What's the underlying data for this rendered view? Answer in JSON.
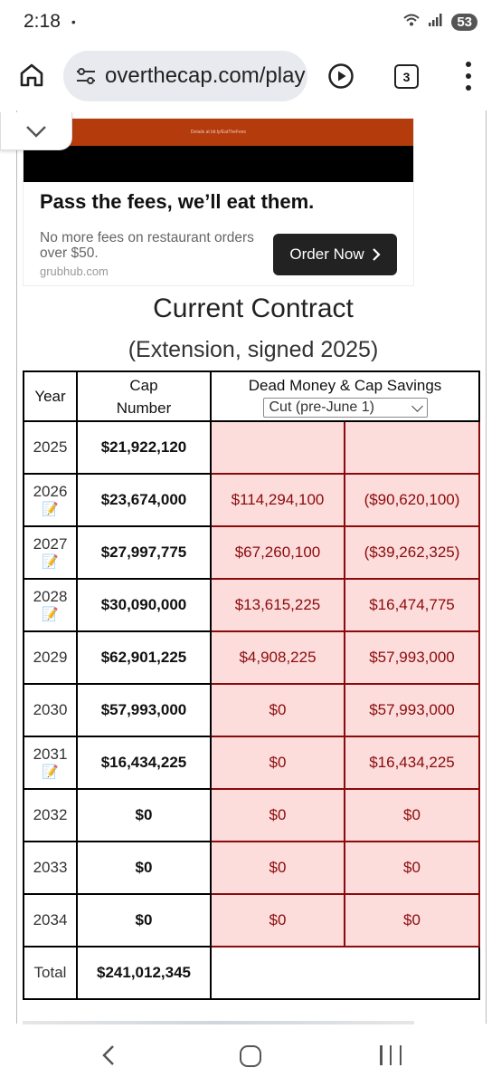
{
  "status_bar": {
    "time": "2:18",
    "dot": "•",
    "battery": "53",
    "icons": [
      "wifi-icon",
      "signal-icon"
    ]
  },
  "browser": {
    "url": "overthecap.com/play",
    "tab_count": "3",
    "icons": [
      "home-icon",
      "tune-icon",
      "play-icon",
      "tabs-icon",
      "menu-icon"
    ]
  },
  "ad": {
    "headline": "Pass the fees, we’ll eat them.",
    "body": "No more fees on restaurant orders over $50.",
    "domain": "grubhub.com",
    "button_label": "Order Now",
    "banner_caption": "Details at bit.ly/EatTheFees",
    "colors": {
      "banner": "#b43b0c",
      "button": "#222222"
    }
  },
  "contract": {
    "title": "Current Contract",
    "subtitle": "(Extension, signed 2025)",
    "headers": {
      "year": "Year",
      "cap_number": "Cap Number",
      "dead_money": "Dead Money & Cap Savings",
      "select_value": "Cut (pre-June 1)"
    },
    "rows": [
      {
        "year": "2025",
        "memo": false,
        "cap": "$21,922,120",
        "dead": "",
        "savings": ""
      },
      {
        "year": "2026",
        "memo": true,
        "cap": "$23,674,000",
        "dead": "$114,294,100",
        "savings": "($90,620,100)"
      },
      {
        "year": "2027",
        "memo": true,
        "cap": "$27,997,775",
        "dead": "$67,260,100",
        "savings": "($39,262,325)"
      },
      {
        "year": "2028",
        "memo": true,
        "cap": "$30,090,000",
        "dead": "$13,615,225",
        "savings": "$16,474,775"
      },
      {
        "year": "2029",
        "memo": false,
        "cap": "$62,901,225",
        "dead": "$4,908,225",
        "savings": "$57,993,000"
      },
      {
        "year": "2030",
        "memo": false,
        "cap": "$57,993,000",
        "dead": "$0",
        "savings": "$57,993,000"
      },
      {
        "year": "2031",
        "memo": true,
        "cap": "$16,434,225",
        "dead": "$0",
        "savings": "$16,434,225"
      },
      {
        "year": "2032",
        "memo": false,
        "cap": "$0",
        "dead": "$0",
        "savings": "$0"
      },
      {
        "year": "2033",
        "memo": false,
        "cap": "$0",
        "dead": "$0",
        "savings": "$0"
      },
      {
        "year": "2034",
        "memo": false,
        "cap": "$0",
        "dead": "$0",
        "savings": "$0"
      }
    ],
    "total": {
      "label": "Total",
      "cap": "$241,012,345"
    },
    "memo_glyph": "📝",
    "colors": {
      "dead_cell_bg": "#fddcdc",
      "dead_cell_text": "#8a0b0b"
    }
  },
  "nav": {
    "icons": [
      "back-icon",
      "home-icon",
      "recents-icon"
    ]
  }
}
